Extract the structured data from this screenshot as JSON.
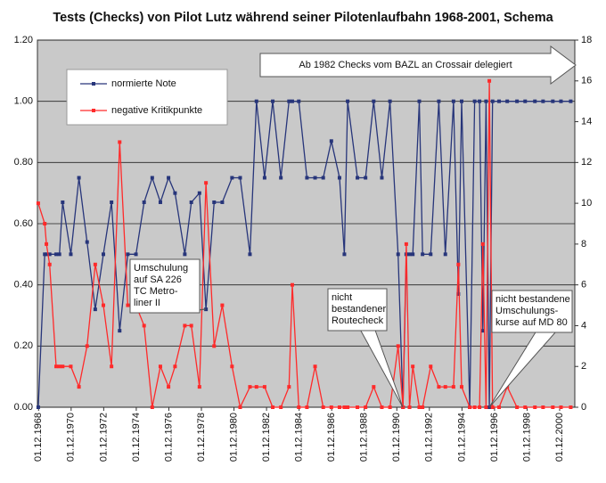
{
  "chart_data": {
    "type": "line",
    "title": "Tests (Checks) von Pilot Lutz während seiner Pilotenlaufbahn 1968-2001, Schema",
    "x": [
      1968.9,
      1969.3,
      1969.4,
      1969.6,
      1970.0,
      1970.2,
      1970.4,
      1970.9,
      1971.4,
      1971.9,
      1972.4,
      1972.9,
      1973.4,
      1973.9,
      1974.4,
      1974.9,
      1975.4,
      1975.9,
      1976.4,
      1976.9,
      1977.3,
      1977.9,
      1978.3,
      1978.8,
      1979.2,
      1979.7,
      1980.2,
      1980.8,
      1981.3,
      1981.9,
      1982.3,
      1982.8,
      1983.3,
      1983.8,
      1984.3,
      1984.5,
      1984.9,
      1985.4,
      1985.9,
      1986.4,
      1986.9,
      1987.4,
      1987.7,
      1987.9,
      1988.5,
      1989.0,
      1989.5,
      1990.0,
      1990.5,
      1991.0,
      1991.3,
      1991.5,
      1991.7,
      1991.9,
      1992.3,
      1992.5,
      1993.0,
      1993.5,
      1993.9,
      1994.4,
      1994.7,
      1994.9,
      1995.4,
      1995.7,
      1996.0,
      1996.2,
      1996.4,
      1996.6,
      1996.8,
      1997.2,
      1997.7,
      1998.3,
      1998.8,
      1999.4,
      1999.9,
      2000.5,
      2001.0,
      2001.6
    ],
    "series": [
      {
        "name": "normierte Note",
        "color": "#27357a",
        "axis": "y",
        "values": [
          0,
          0.5,
          0.5,
          0.5,
          0.5,
          0.5,
          0.67,
          0.5,
          0.75,
          0.54,
          0.32,
          0.5,
          0.67,
          0.25,
          0.5,
          0.5,
          0.67,
          0.75,
          0.67,
          0.75,
          0.7,
          0.5,
          0.67,
          0.7,
          0.32,
          0.67,
          0.67,
          0.75,
          0.75,
          0.5,
          1.0,
          0.75,
          1.0,
          0.75,
          1.0,
          1.0,
          1.0,
          0.75,
          0.75,
          0.75,
          0.87,
          0.75,
          0.5,
          1.0,
          0.75,
          0.75,
          1.0,
          0.75,
          1.0,
          0.5,
          0,
          0.5,
          0.5,
          0.5,
          1.0,
          0.5,
          0.5,
          1.0,
          0.5,
          1.0,
          0.37,
          1.0,
          0,
          1.0,
          1.0,
          0.25,
          1.0,
          0,
          1.0,
          1.0,
          1.0,
          1.0,
          1.0,
          1.0,
          1.0,
          1.0,
          1.0,
          1.0
        ]
      },
      {
        "name": "negative Kritikpunkte",
        "color": "#ff2a2a",
        "axis": "y2",
        "values": [
          10,
          9,
          8,
          7,
          2,
          2,
          2,
          2,
          1,
          3,
          7,
          5,
          2,
          13,
          5,
          5,
          4,
          0,
          2,
          1,
          2,
          4,
          4,
          1,
          11,
          3,
          5,
          2,
          0,
          1,
          1,
          1,
          0,
          0,
          1,
          6,
          0,
          0,
          2,
          0,
          0,
          0,
          0,
          0,
          0,
          0,
          1,
          0,
          0,
          3,
          0,
          8,
          0,
          2,
          0,
          0,
          2,
          1,
          1,
          1,
          7,
          1,
          0,
          0,
          0,
          8,
          0,
          16,
          0,
          0,
          1,
          0,
          0,
          0,
          0,
          0,
          0,
          0
        ]
      }
    ],
    "xlim": [
      1968.85,
      2001.85
    ],
    "xticks": [
      {
        "value": 1968.92,
        "label": "01.12.1968"
      },
      {
        "value": 1970.92,
        "label": "01.12.1970"
      },
      {
        "value": 1972.92,
        "label": "01.12.1972"
      },
      {
        "value": 1974.92,
        "label": "01.12.1974"
      },
      {
        "value": 1976.92,
        "label": "01.12.1976"
      },
      {
        "value": 1978.92,
        "label": "01.12.1978"
      },
      {
        "value": 1980.92,
        "label": "01.12.1980"
      },
      {
        "value": 1982.92,
        "label": "01.12.1982"
      },
      {
        "value": 1984.92,
        "label": "01.12.1984"
      },
      {
        "value": 1986.92,
        "label": "01.12.1986"
      },
      {
        "value": 1988.92,
        "label": "01.12.1988"
      },
      {
        "value": 1990.92,
        "label": "01.12.1990"
      },
      {
        "value": 1992.92,
        "label": "01.12.1992"
      },
      {
        "value": 1994.92,
        "label": "01.12.1994"
      },
      {
        "value": 1996.92,
        "label": "01.12.1996"
      },
      {
        "value": 1998.92,
        "label": "01.12.1998"
      },
      {
        "value": 2000.92,
        "label": "01.12.2000"
      }
    ],
    "ylim": [
      0,
      1.2
    ],
    "yticks": [
      {
        "value": 0,
        "label": "0.00"
      },
      {
        "value": 0.2,
        "label": "0.20"
      },
      {
        "value": 0.4,
        "label": "0.40"
      },
      {
        "value": 0.6,
        "label": "0.60"
      },
      {
        "value": 0.8,
        "label": "0.80"
      },
      {
        "value": 1.0,
        "label": "1.00"
      },
      {
        "value": 1.2,
        "label": "1.20"
      }
    ],
    "y2lim": [
      0,
      18
    ],
    "y2ticks": [
      0,
      2,
      4,
      6,
      8,
      10,
      12,
      14,
      16,
      18
    ],
    "grid": true,
    "legend": "upper left",
    "banner": "Ab 1982 Checks vom BAZL an Crossair delegiert",
    "annotations": [
      {
        "lines": [
          "Umschulung",
          "auf SA 226",
          "TC Metro-",
          "liner II"
        ]
      },
      {
        "lines": [
          "nicht",
          "bestandener",
          "Routecheck"
        ]
      },
      {
        "lines": [
          "nicht bestandene",
          "Umschulungs-",
          "kurse auf MD 80"
        ]
      }
    ]
  }
}
